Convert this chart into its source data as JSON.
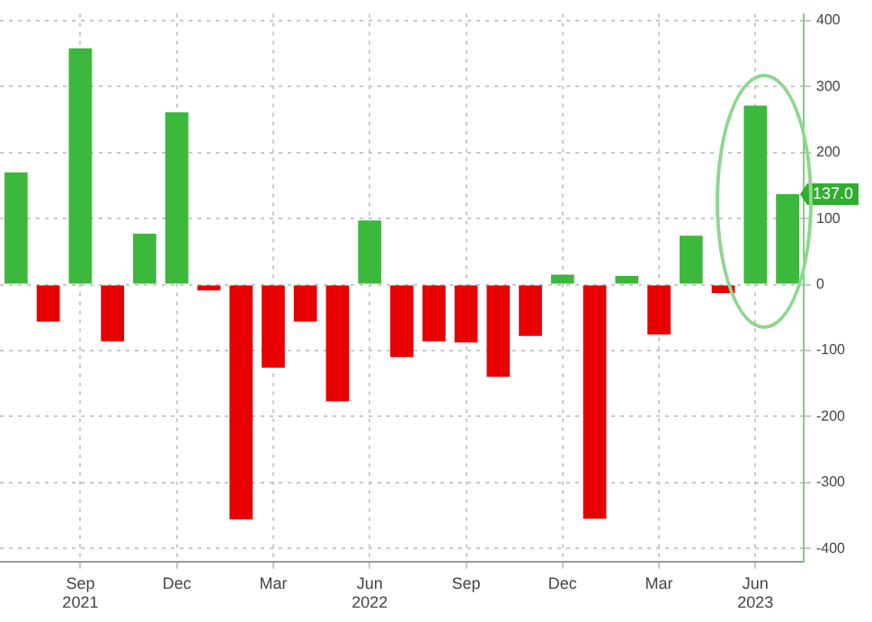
{
  "chart_data": {
    "type": "bar",
    "categories": [
      null,
      null,
      "Sep 2021",
      null,
      null,
      "Dec",
      null,
      null,
      "Mar",
      null,
      null,
      "Jun 2022",
      null,
      null,
      "Sep",
      null,
      null,
      "Dec",
      null,
      null,
      "Mar",
      null,
      null,
      "Jun 2023",
      null
    ],
    "values": [
      170,
      -56,
      358,
      -86,
      77,
      261,
      -9,
      -356,
      -126,
      -56,
      -177,
      97,
      -110,
      -86,
      -88,
      -140,
      -78,
      15,
      -355,
      13,
      -76,
      74,
      -13,
      271,
      137
    ],
    "colors": [
      "#3cb83c",
      "#e80000",
      "#3cb83c",
      "#e80000",
      "#3cb83c",
      "#3cb83c",
      "#e80000",
      "#e80000",
      "#e80000",
      "#e80000",
      "#e80000",
      "#3cb83c",
      "#e80000",
      "#e80000",
      "#e80000",
      "#e80000",
      "#e80000",
      "#3cb83c",
      "#e80000",
      "#3cb83c",
      "#e80000",
      "#3cb83c",
      "#e80000",
      "#3cb83c",
      "#3cb83c"
    ],
    "ylim": [
      -420,
      410
    ],
    "yticks": [
      -400,
      -300,
      -200,
      -100,
      0,
      100,
      200,
      300,
      400
    ],
    "grid": true,
    "legend": false,
    "annotations": [
      "137.0"
    ]
  }
}
